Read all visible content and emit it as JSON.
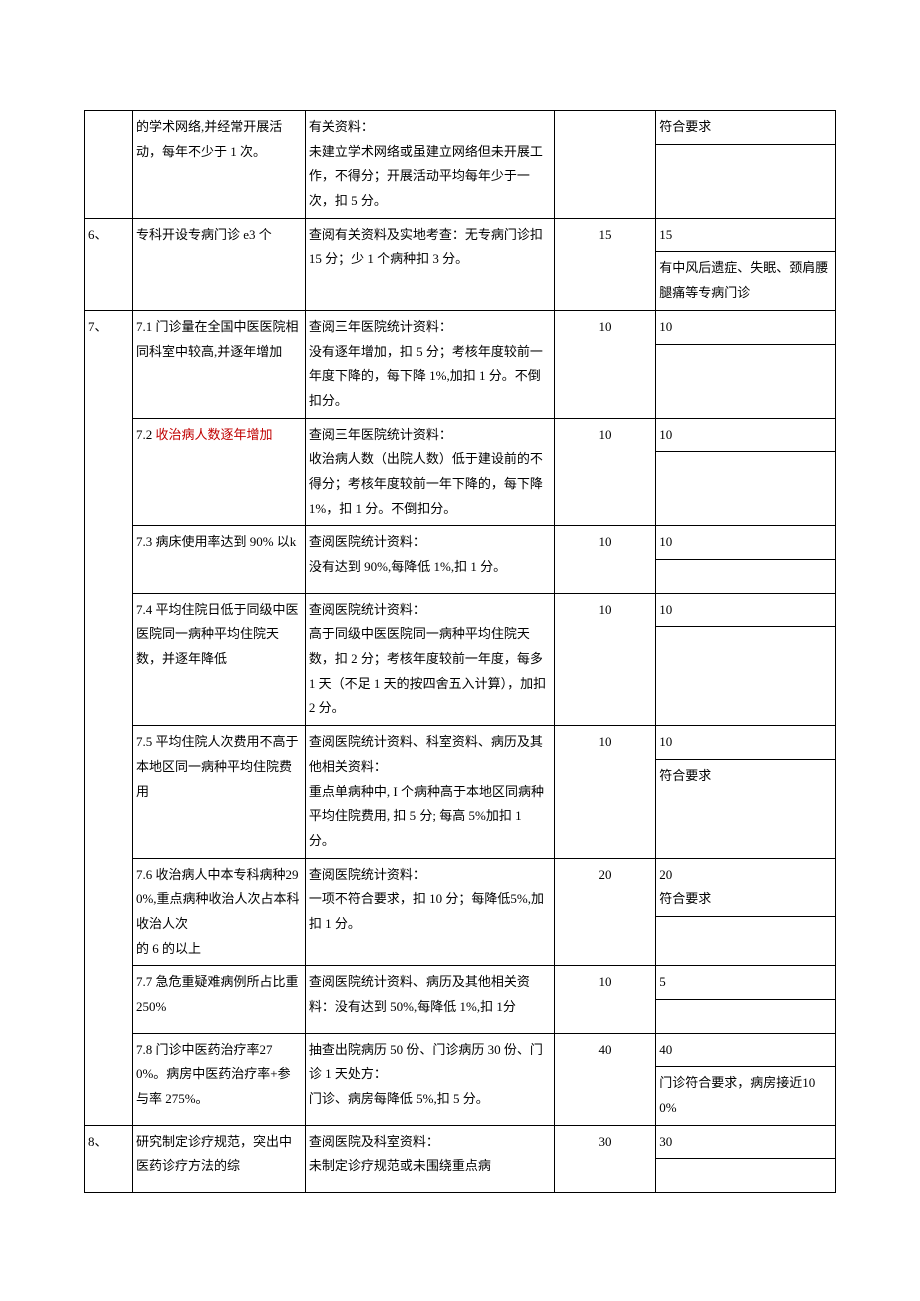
{
  "rows": [
    {
      "idx": "",
      "standard": "的学术网络,并经常开展活动，每年不少于 1 次。",
      "eval": "有关资料：\n未建立学术网络或虽建立网络但未开展工作，不得分；开展活动平均每年少于一次，扣 5 分。",
      "score": "",
      "self_top": "符合要求",
      "self_bot": ""
    },
    {
      "idx": "6、",
      "standard": "专科开设专病门诊 e3 个",
      "eval": "查阅有关资料及实地考查：无专病门诊扣 15 分；少 1 个病种扣 3 分。",
      "score": "15",
      "self_top": "15",
      "self_bot": "有中风后遗症、失眠、颈肩腰腿痛等专病门诊"
    },
    {
      "idx": "7、",
      "standard": "7.1 门诊量在全国中医医院相同科室中较高,并逐年增加",
      "eval": "查阅三年医院统计资料：\n没有逐年增加，扣 5 分；考核年度较前一年度下降的，每下降 1%,加扣 1 分。不倒扣分。",
      "score": "10",
      "self_top": "10",
      "self_bot": ""
    },
    {
      "idx": "",
      "standard": "7.2 <span class=\"red\">收治病人数逐年增加</span>",
      "eval": "查阅三年医院统计资料：\n收治病人数（出院人数）低于建设前的不得分；考核年度较前一年下降的，每下降 1%，扣 1 分。不倒扣分。",
      "score": "10",
      "self_top": "10",
      "self_bot": ""
    },
    {
      "idx": "",
      "standard": "7.3 病床使用率达到 90% 以k",
      "eval": "查阅医院统计资料：\n没有达到 90%,每降低 1%,扣 1 分。",
      "score": "10",
      "self_top": "10",
      "self_bot": ""
    },
    {
      "idx": "",
      "standard": "7.4 平均住院日低于同级中医医院同一病种平均住院天数，并逐年降低",
      "eval": "查阅医院统计资料：\n高于同级中医医院同一病种平均住院天数，扣 2 分；考核年度较前一年度，每多 1 天（不足 1 天的按四舍五入计算），加扣 2 分。",
      "score": "10",
      "self_top": "10",
      "self_bot": ""
    },
    {
      "idx": "",
      "standard": "7.5 平均住院人次费用不高于本地区同一病种平均住院费用",
      "eval": "查阅医院统计资料、科室资料、病历及其他相关资料：\n重点单病种中, I 个病种高于本地区同病种平均住院费用, 扣 5 分; 每高 5%加扣 1 分。",
      "score": "10",
      "self_top": "10",
      "self_bot": "符合要求"
    },
    {
      "idx": "",
      "standard": "7.6 收治病人中本专科病种290%,重点病种收治人次占本科收治人次\n的 6 的以上",
      "eval": "查阅医院统计资料：\n一项不符合要求，扣 10 分；每降低5%,加扣 1 分。",
      "score": "20",
      "self_top": "20\n符合要求",
      "self_bot": ""
    },
    {
      "idx": "",
      "standard": "7.7 急危重疑难病例所占比重 250%",
      "eval": "查阅医院统计资料、病历及其他相关资料：没有达到 50%,每降低 1%,扣 1分",
      "score": "10",
      "self_top": "5",
      "self_bot": ""
    },
    {
      "idx": "",
      "standard": "7.8 门诊中医药治疗率270%。病房中医药治疗率+参与率 275%。",
      "eval": "抽查出院病历 50 份、门诊病历 30 份、门诊 1 天处方：\n门诊、病房每降低 5%,扣 5 分。",
      "score": "40",
      "self_top": "40",
      "self_bot": "门诊符合要求，病房接近100%"
    },
    {
      "idx": "8、",
      "standard": "研究制定诊疗规范，突出中医药诊疗方法的综",
      "eval": "查阅医院及科室资料：\n未制定诊疗规范或未围绕重点病",
      "score": "30",
      "self_top": "30",
      "self_bot": ""
    }
  ],
  "span": {
    "start7": 2,
    "len7": 8
  }
}
